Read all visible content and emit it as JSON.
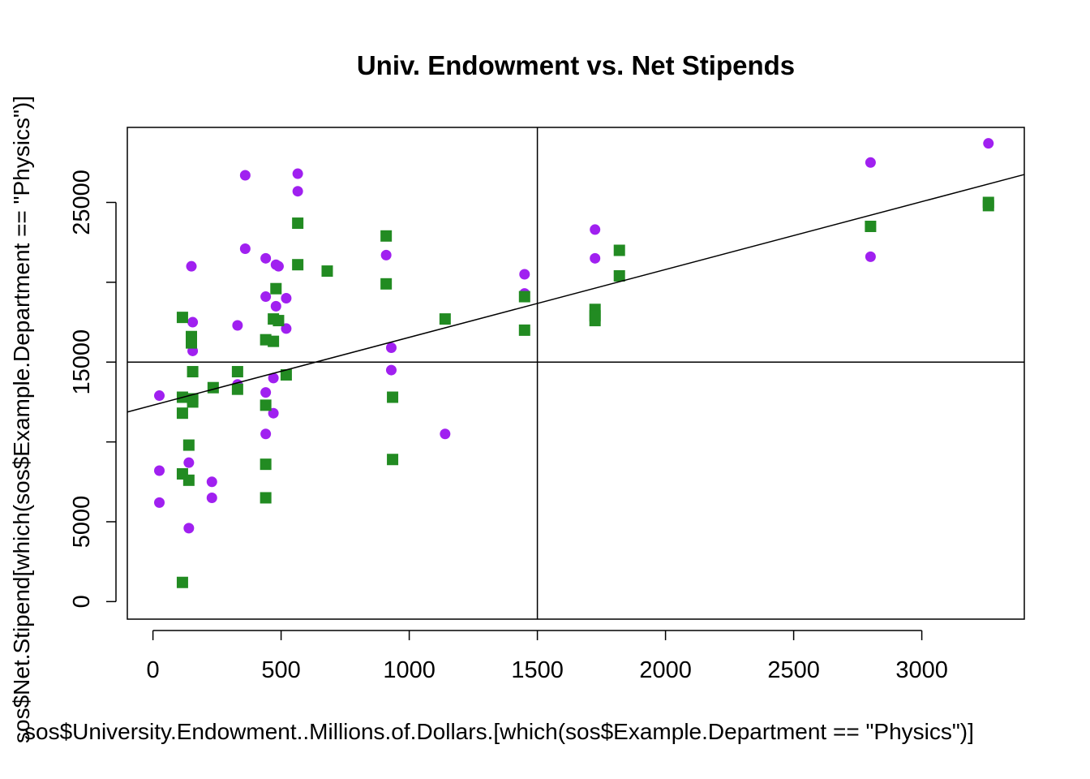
{
  "chart_data": {
    "type": "scatter",
    "title": "Univ. Endowment vs. Net Stipends",
    "xlabel": "sos$University.Endowment..Millions.of.Dollars.[which(sos$Example.Department == \"Physics\")]",
    "ylabel": "sos$Net.Stipend[which(sos$Example.Department == \"Physics\")]",
    "xlim": [
      -100,
      3400
    ],
    "ylim": [
      -1100,
      29700
    ],
    "x_ticks": [
      0,
      500,
      1000,
      1500,
      2000,
      2500,
      3000
    ],
    "y_ticks": [
      0,
      5000,
      10000,
      15000,
      20000,
      25000
    ],
    "y_tick_labels": [
      "0",
      "5000",
      "",
      "15000",
      "",
      "25000"
    ],
    "reference_lines": {
      "vertical_x": 1500,
      "horizontal_y": 15000
    },
    "regression_line": {
      "intercept": 12300,
      "slope": 4.25
    },
    "colors": {
      "series_1": "#a020f0",
      "series_2": "#228b22",
      "axis": "#000000"
    },
    "series": [
      {
        "marker": "circle",
        "color": "#a020f0",
        "points": [
          [
            25,
            12900
          ],
          [
            25,
            8200
          ],
          [
            25,
            6200
          ],
          [
            140,
            8700
          ],
          [
            140,
            4600
          ],
          [
            150,
            21000
          ],
          [
            155,
            17500
          ],
          [
            155,
            15700
          ],
          [
            230,
            7500
          ],
          [
            230,
            6500
          ],
          [
            330,
            17300
          ],
          [
            330,
            13600
          ],
          [
            360,
            26700
          ],
          [
            360,
            22100
          ],
          [
            440,
            21500
          ],
          [
            440,
            19100
          ],
          [
            440,
            13100
          ],
          [
            440,
            10500
          ],
          [
            470,
            14000
          ],
          [
            470,
            11800
          ],
          [
            480,
            21100
          ],
          [
            480,
            18500
          ],
          [
            490,
            21000
          ],
          [
            520,
            19000
          ],
          [
            520,
            17100
          ],
          [
            565,
            26800
          ],
          [
            565,
            25700
          ],
          [
            910,
            21700
          ],
          [
            930,
            15900
          ],
          [
            930,
            14500
          ],
          [
            1140,
            10500
          ],
          [
            1450,
            20500
          ],
          [
            1450,
            19300
          ],
          [
            1725,
            23300
          ],
          [
            1725,
            21500
          ],
          [
            2800,
            27500
          ],
          [
            2800,
            21600
          ],
          [
            3260,
            28700
          ]
        ]
      },
      {
        "marker": "square",
        "color": "#228b22",
        "points": [
          [
            115,
            17800
          ],
          [
            115,
            12800
          ],
          [
            115,
            11800
          ],
          [
            115,
            8000
          ],
          [
            115,
            1200
          ],
          [
            140,
            9800
          ],
          [
            140,
            7600
          ],
          [
            150,
            16600
          ],
          [
            150,
            16200
          ],
          [
            155,
            14400
          ],
          [
            155,
            12700
          ],
          [
            155,
            12500
          ],
          [
            235,
            13400
          ],
          [
            330,
            14400
          ],
          [
            330,
            13300
          ],
          [
            440,
            16400
          ],
          [
            440,
            12300
          ],
          [
            440,
            8600
          ],
          [
            440,
            6500
          ],
          [
            470,
            17700
          ],
          [
            470,
            16300
          ],
          [
            480,
            19600
          ],
          [
            490,
            17600
          ],
          [
            520,
            14200
          ],
          [
            565,
            23700
          ],
          [
            565,
            21100
          ],
          [
            680,
            20700
          ],
          [
            910,
            22900
          ],
          [
            910,
            19900
          ],
          [
            935,
            12800
          ],
          [
            935,
            8900
          ],
          [
            1140,
            17700
          ],
          [
            1450,
            19100
          ],
          [
            1450,
            17000
          ],
          [
            1725,
            18300
          ],
          [
            1725,
            17900
          ],
          [
            1725,
            17600
          ],
          [
            1820,
            22000
          ],
          [
            1820,
            20400
          ],
          [
            2800,
            23500
          ],
          [
            3260,
            25000
          ],
          [
            3260,
            24800
          ]
        ]
      }
    ]
  }
}
